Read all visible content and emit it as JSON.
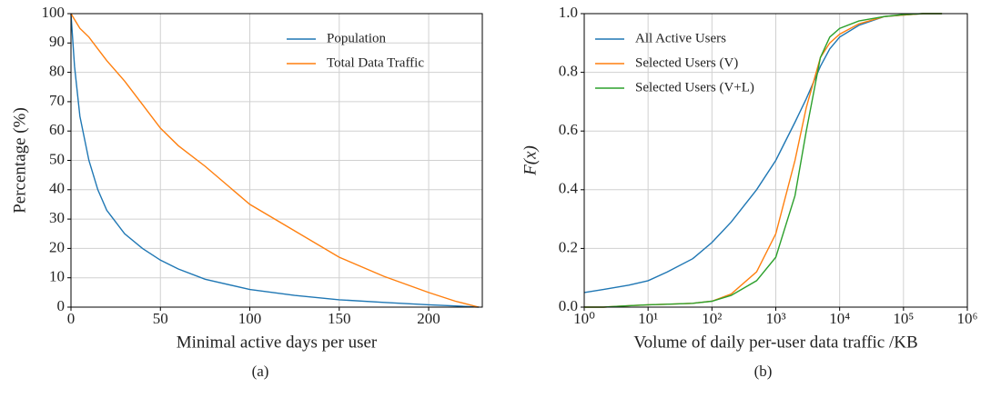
{
  "chart_data": [
    {
      "type": "line",
      "caption": "(a)",
      "xlabel": "Minimal active days per user",
      "ylabel": "Percentage (%)",
      "x": [
        0,
        2,
        5,
        10,
        15,
        20,
        30,
        40,
        50,
        60,
        75,
        100,
        125,
        150,
        175,
        200,
        215,
        228
      ],
      "series": [
        {
          "name": "Population",
          "color": "#1f77b4",
          "values": [
            100,
            82,
            65,
            50,
            40,
            33,
            25,
            20,
            16,
            13,
            9.5,
            6,
            4,
            2.5,
            1.6,
            0.8,
            0.4,
            0
          ]
        },
        {
          "name": "Total Data Traffic",
          "color": "#ff7f0e",
          "values": [
            100,
            98,
            95,
            92,
            88,
            84,
            77,
            69,
            61,
            55,
            48,
            35,
            26,
            17,
            10.5,
            5,
            2,
            0
          ]
        }
      ],
      "xlim": [
        0,
        230
      ],
      "xticks": [
        0,
        50,
        100,
        150,
        200
      ],
      "ylim": [
        0,
        100
      ],
      "yticks": [
        0,
        10,
        20,
        30,
        40,
        50,
        60,
        70,
        80,
        90,
        100
      ],
      "grid": true,
      "legend": "upper right"
    },
    {
      "type": "line",
      "caption": "(b)",
      "xlabel": "Volume of daily per-user data traffic /KB",
      "ylabel": "F(x)",
      "x": [
        1,
        2,
        5,
        10,
        20,
        50,
        100,
        200,
        500,
        1000,
        2000,
        3000,
        5000,
        7000,
        10000,
        20000,
        50000,
        100000,
        200000,
        400000
      ],
      "series": [
        {
          "name": "All Active Users",
          "color": "#1f77b4",
          "values": [
            0.05,
            0.06,
            0.075,
            0.09,
            0.12,
            0.165,
            0.22,
            0.29,
            0.4,
            0.5,
            0.63,
            0.71,
            0.82,
            0.88,
            0.92,
            0.96,
            0.99,
            0.995,
            1,
            1
          ]
        },
        {
          "name": "Selected Users (V)",
          "color": "#ff7f0e",
          "values": [
            0,
            0,
            0.005,
            0.008,
            0.01,
            0.013,
            0.02,
            0.045,
            0.12,
            0.25,
            0.5,
            0.68,
            0.85,
            0.9,
            0.93,
            0.965,
            0.99,
            0.995,
            1,
            1
          ]
        },
        {
          "name": "Selected Users (V+L)",
          "color": "#2ca02c",
          "values": [
            0,
            0,
            0.005,
            0.008,
            0.01,
            0.013,
            0.02,
            0.04,
            0.09,
            0.17,
            0.38,
            0.6,
            0.85,
            0.92,
            0.95,
            0.975,
            0.99,
            0.997,
            1,
            1
          ]
        }
      ],
      "xlim": [
        1,
        1000000
      ],
      "xscale": "log",
      "xticks": [
        {
          "value": 1,
          "label": "10⁰"
        },
        {
          "value": 10,
          "label": "10¹"
        },
        {
          "value": 100,
          "label": "10²"
        },
        {
          "value": 1000,
          "label": "10³"
        },
        {
          "value": 10000,
          "label": "10⁴"
        },
        {
          "value": 100000,
          "label": "10⁵"
        },
        {
          "value": 1000000,
          "label": "10⁶"
        }
      ],
      "ylim": [
        0,
        1
      ],
      "yticks": [
        {
          "value": 0,
          "label": "0.0"
        },
        0.2,
        0.4,
        0.6,
        0.8,
        {
          "value": 1,
          "label": "1.0"
        }
      ],
      "grid": true,
      "legend": "upper left"
    }
  ]
}
